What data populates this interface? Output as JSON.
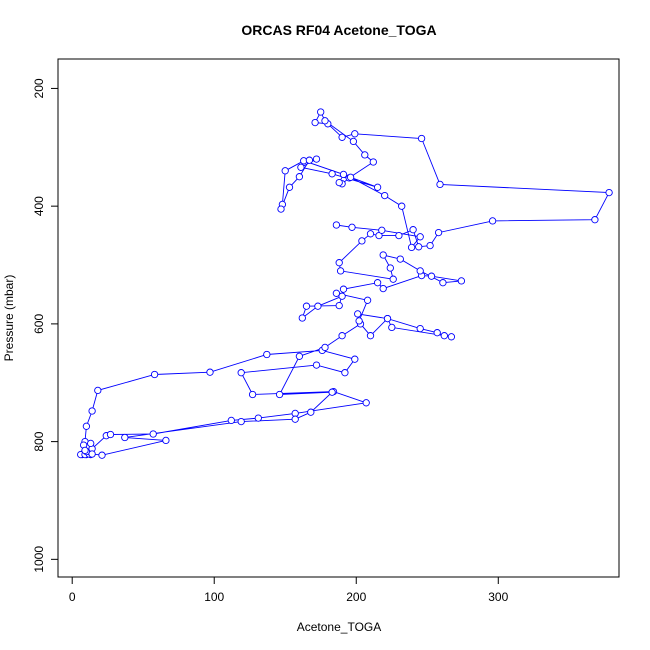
{
  "chart_data": {
    "type": "line",
    "title": "ORCAS RF04 Acetone_TOGA",
    "xlabel": "Acetone_TOGA",
    "ylabel": "Pressure (mbar)",
    "xlim": [
      -10,
      385
    ],
    "ylim": [
      1030,
      150
    ],
    "y_reversed": true,
    "xticks": [
      0,
      100,
      200,
      300
    ],
    "yticks": [
      200,
      400,
      600,
      800,
      1000
    ],
    "grid": false,
    "legend": "none",
    "marker": "open-circle",
    "line_color": "#0000ff",
    "series": [
      {
        "x": [
          11,
          13,
          7,
          10,
          8,
          6,
          9,
          12,
          13,
          10,
          14,
          24,
          27,
          57,
          112,
          131,
          157,
          207,
          184,
          127,
          119,
          172,
          192,
          199,
          176,
          137,
          97,
          58,
          18,
          14,
          10,
          9,
          13,
          8,
          9,
          14,
          21,
          66,
          37,
          119,
          157,
          168,
          183,
          146,
          160,
          178,
          190,
          203,
          210,
          222,
          245,
          257,
          262,
          267,
          225,
          222,
          201,
          202,
          208,
          186,
          190,
          173,
          162,
          165,
          188,
          191,
          215,
          219,
          246,
          253,
          274,
          261,
          245,
          231,
          219,
          224,
          226,
          189,
          188,
          204,
          210,
          216,
          230,
          240,
          244,
          252,
          258,
          296,
          368,
          378,
          259,
          246,
          199,
          190,
          180,
          171,
          175,
          178,
          198,
          206,
          212,
          195,
          190,
          188,
          191,
          163,
          150,
          148,
          147,
          153,
          160,
          167,
          172,
          161,
          183,
          215,
          196,
          220,
          232,
          239,
          245,
          218,
          197,
          186
        ],
        "y": [
          808,
          822,
          822,
          822,
          820,
          822,
          822,
          821,
          818,
          817,
          812,
          790,
          788,
          787,
          764,
          760,
          752,
          734,
          715,
          720,
          683,
          670,
          683,
          660,
          645,
          652,
          682,
          686,
          713,
          748,
          774,
          800,
          803,
          806,
          815,
          821,
          823,
          798,
          793,
          766,
          762,
          750,
          716,
          720,
          655,
          640,
          620,
          600,
          620,
          591,
          608,
          615,
          620,
          622,
          606,
          591,
          583,
          595,
          560,
          548,
          553,
          570,
          590,
          570,
          569,
          541,
          530,
          540,
          518,
          519,
          527,
          530,
          510,
          490,
          483,
          505,
          524,
          510,
          496,
          459,
          447,
          450,
          450,
          440,
          469,
          467,
          445,
          425,
          423,
          377,
          363,
          285,
          277,
          283,
          260,
          258,
          240,
          255,
          290,
          313,
          325,
          352,
          362,
          360,
          346,
          323,
          340,
          397,
          405,
          368,
          350,
          322,
          320,
          334,
          345,
          368,
          351,
          382,
          400,
          470,
          452,
          441,
          436,
          432
        ]
      }
    ]
  }
}
